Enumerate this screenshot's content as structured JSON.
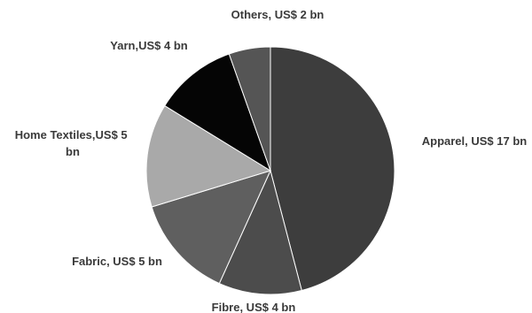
{
  "chart_data": {
    "type": "pie",
    "title": "",
    "slices": [
      {
        "label": "Apparel, US$ 17 bn",
        "value": 17,
        "color": "#3d3d3d"
      },
      {
        "label": "Fibre, US$ 4 bn",
        "value": 4,
        "color": "#4c4c4c"
      },
      {
        "label": "Fabric, US$ 5 bn",
        "value": 5,
        "color": "#5f5f5f"
      },
      {
        "label": "Home Textiles,US$ 5 bn",
        "value": 5,
        "color": "#a9a9a9"
      },
      {
        "label": "Yarn,US$ 4 bn",
        "value": 4,
        "color": "#050505"
      },
      {
        "label": "Others, US$ 2 bn",
        "value": 2,
        "color": "#555555"
      }
    ],
    "legend": "none"
  }
}
